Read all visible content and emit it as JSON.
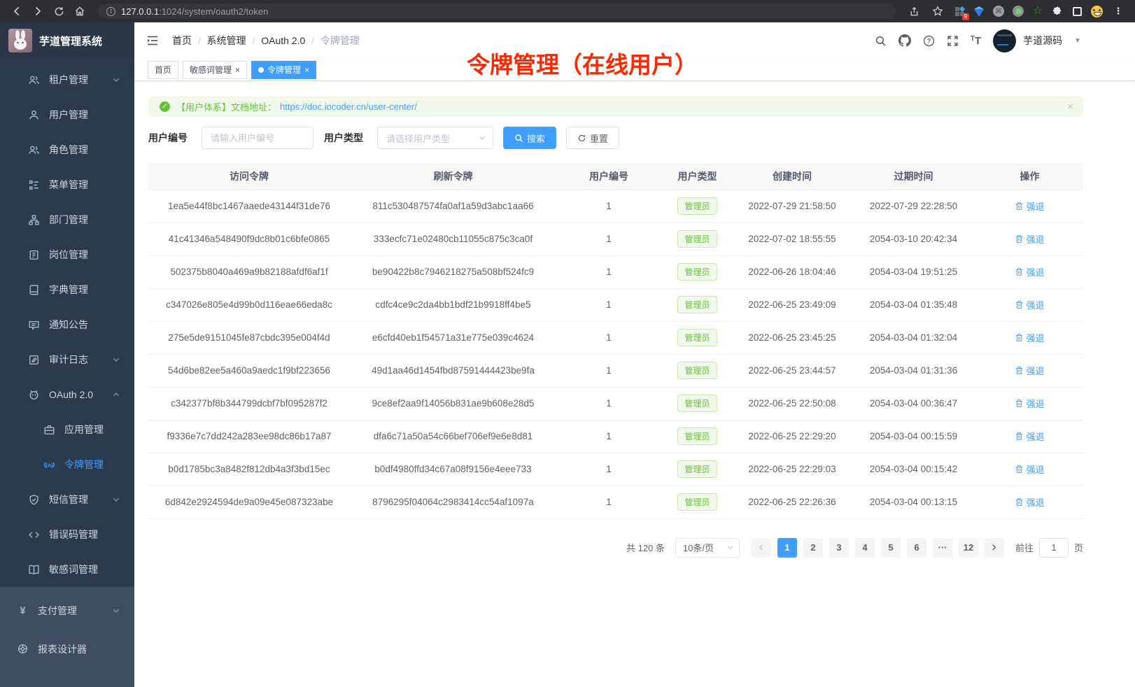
{
  "colors": {
    "accent": "#409eff",
    "success": "#67c23a",
    "annotation_red": "#ff2800",
    "sidebar_bg": "#2c3a4d"
  },
  "browser": {
    "url_host": "127.0.0.1",
    "url_path": ":1024/system/oauth2/token",
    "extension_badge": "9"
  },
  "sidebar": {
    "app_title": "芋道管理系统",
    "items": [
      {
        "key": "tenant",
        "label": "租户管理",
        "icon": "users",
        "chevron": "down"
      },
      {
        "key": "user",
        "label": "用户管理",
        "icon": "user"
      },
      {
        "key": "role",
        "label": "角色管理",
        "icon": "users2"
      },
      {
        "key": "menu",
        "label": "菜单管理",
        "icon": "menu"
      },
      {
        "key": "dept",
        "label": "部门管理",
        "icon": "org"
      },
      {
        "key": "post",
        "label": "岗位管理",
        "icon": "badge"
      },
      {
        "key": "dict",
        "label": "字典管理",
        "icon": "dict"
      },
      {
        "key": "notice",
        "label": "通知公告",
        "icon": "message"
      },
      {
        "key": "audit-log",
        "label": "审计日志",
        "icon": "log",
        "chevron": "down"
      },
      {
        "key": "oauth2",
        "label": "OAuth 2.0",
        "icon": "robot",
        "chevron": "up"
      },
      {
        "key": "oauth2-app",
        "label": "应用管理",
        "icon": "app",
        "child": true
      },
      {
        "key": "oauth2-token",
        "label": "令牌管理",
        "icon": "token",
        "child": true,
        "active": true
      },
      {
        "key": "sms",
        "label": "短信管理",
        "icon": "shield",
        "chevron": "down"
      },
      {
        "key": "errcode",
        "label": "错误码管理",
        "icon": "code"
      },
      {
        "key": "sensitive",
        "label": "敏感词管理",
        "icon": "book"
      }
    ],
    "bottom_items": [
      {
        "key": "pay",
        "label": "支付管理",
        "icon": "pay",
        "chevron": "down"
      },
      {
        "key": "report",
        "label": "报表设计器",
        "icon": "report"
      }
    ]
  },
  "header": {
    "breadcrumb": [
      "首页",
      "系统管理",
      "OAuth 2.0",
      "令牌管理"
    ],
    "username": "芋道源码"
  },
  "tabs": [
    {
      "label": "首页",
      "closable": false,
      "active": false
    },
    {
      "label": "敏感词管理",
      "closable": true,
      "active": false
    },
    {
      "label": "令牌管理",
      "closable": true,
      "active": true
    }
  ],
  "annotation": {
    "text": "令牌管理（在线用户）"
  },
  "alert": {
    "text": "【用户体系】文档地址：",
    "link": "https://doc.iocoder.cn/user-center/",
    "close": "×"
  },
  "filters": {
    "user_id_label": "用户编号",
    "user_id_placeholder": "请输入用户编号",
    "user_type_label": "用户类型",
    "user_type_placeholder": "请选择用户类型",
    "search_label": "搜索",
    "reset_label": "重置"
  },
  "table": {
    "columns": [
      "访问令牌",
      "刷新令牌",
      "用户编号",
      "用户类型",
      "创建时间",
      "过期时间",
      "操作"
    ],
    "user_type_badge": "管理员",
    "action_label": "强退",
    "rows": [
      {
        "access": "1ea5e44f8bc1467aaede43144f31de76",
        "refresh": "811c530487574fa0af1a59d3abc1aa66",
        "user_id": "1",
        "created": "2022-07-29 21:58:50",
        "expires": "2022-07-29 22:28:50"
      },
      {
        "access": "41c41346a548490f9dc8b01c6bfe0865",
        "refresh": "333ecfc71e02480cb11055c875c3ca0f",
        "user_id": "1",
        "created": "2022-07-02 18:55:55",
        "expires": "2054-03-10 20:42:34"
      },
      {
        "access": "502375b8040a469a9b82188afdf6af1f",
        "refresh": "be90422b8c7946218275a508bf524fc9",
        "user_id": "1",
        "created": "2022-06-26 18:04:46",
        "expires": "2054-03-04 19:51:25"
      },
      {
        "access": "c347026e805e4d99b0d116eae66eda8c",
        "refresh": "cdfc4ce9c2da4bb1bdf21b9918ff4be5",
        "user_id": "1",
        "created": "2022-06-25 23:49:09",
        "expires": "2054-03-04 01:35:48"
      },
      {
        "access": "275e5de9151045fe87cbdc395e004f4d",
        "refresh": "e6cfd40eb1f54571a31e775e039c4624",
        "user_id": "1",
        "created": "2022-06-25 23:45:25",
        "expires": "2054-03-04 01:32:04"
      },
      {
        "access": "54d6be82ee5a460a9aedc1f9bf223656",
        "refresh": "49d1aa46d1454fbd87591444423be9fa",
        "user_id": "1",
        "created": "2022-06-25 23:44:57",
        "expires": "2054-03-04 01:31:36"
      },
      {
        "access": "c342377bf8b344799dcbf7bf095287f2",
        "refresh": "9ce8ef2aa9f14056b831ae9b608e28d5",
        "user_id": "1",
        "created": "2022-06-25 22:50:08",
        "expires": "2054-03-04 00:36:47"
      },
      {
        "access": "f9336e7c7dd242a283ee98dc86b17a87",
        "refresh": "dfa6c71a50a54c66bef706ef9e6e8d81",
        "user_id": "1",
        "created": "2022-06-25 22:29:20",
        "expires": "2054-03-04 00:15:59"
      },
      {
        "access": "b0d1785bc3a8482f812db4a3f3bd15ec",
        "refresh": "b0df4980ffd34c67a08f9156e4eee733",
        "user_id": "1",
        "created": "2022-06-25 22:29:03",
        "expires": "2054-03-04 00:15:42"
      },
      {
        "access": "6d842e2924594de9a09e45e087323abe",
        "refresh": "8796295f04064c2983414cc54af1097a",
        "user_id": "1",
        "created": "2022-06-25 22:26:36",
        "expires": "2054-03-04 00:13:15"
      }
    ]
  },
  "pagination": {
    "total": "共 120 条",
    "page_size": "10条/页",
    "pages": [
      "1",
      "2",
      "3",
      "4",
      "5",
      "6",
      "···",
      "12"
    ],
    "active_page": "1",
    "goto_label": "前往",
    "goto_value": "1",
    "page_suffix": "页"
  }
}
